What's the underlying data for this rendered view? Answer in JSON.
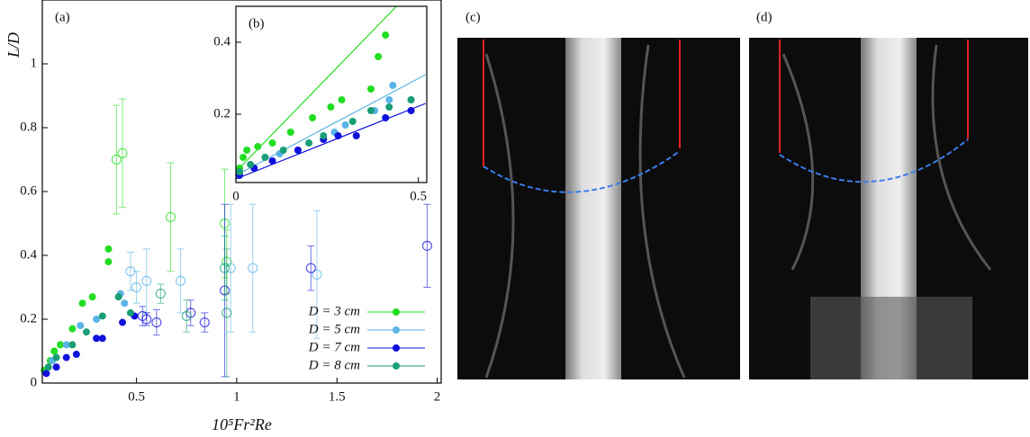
{
  "chart_data": [
    {
      "type": "scatter",
      "panel_label": "(a)",
      "y_label": "L/D",
      "x_label": "10⁵Fr²Re",
      "xlim": [
        0.03,
        2.02
      ],
      "ylim": [
        0,
        1.2
      ],
      "xticks": [
        0.5,
        1,
        1.5,
        2
      ],
      "yticks": [
        0,
        0.2,
        0.4,
        0.6,
        0.8,
        1
      ],
      "legend": "lower right",
      "series": [
        {
          "name": "D = 3 cm",
          "color": "#22dd22",
          "x": [
            0.04,
            0.07,
            0.09,
            0.12,
            0.18,
            0.23,
            0.28,
            0.36,
            0.36,
            0.4,
            0.43,
            0.67,
            0.94,
            0.95
          ],
          "values": [
            0.04,
            0.07,
            0.1,
            0.12,
            0.17,
            0.25,
            0.27,
            0.38,
            0.42,
            0.7,
            0.72,
            0.52,
            0.5,
            0.38
          ],
          "errors": [
            null,
            null,
            null,
            null,
            null,
            null,
            null,
            null,
            null,
            0.17,
            0.17,
            0.17,
            0.17,
            0.1
          ]
        },
        {
          "name": "D = 5 cm",
          "color": "#5ab4e5",
          "x": [
            0.08,
            0.15,
            0.22,
            0.3,
            0.42,
            0.44,
            0.47,
            0.5,
            0.55,
            0.72,
            0.97,
            1.08,
            1.4
          ],
          "values": [
            0.07,
            0.12,
            0.18,
            0.2,
            0.28,
            0.25,
            0.35,
            0.3,
            0.32,
            0.32,
            0.36,
            0.36,
            0.34
          ],
          "errors": [
            null,
            null,
            null,
            null,
            null,
            null,
            0.06,
            0.05,
            0.1,
            0.1,
            0.2,
            0.2,
            0.2
          ]
        },
        {
          "name": "D = 7 cm",
          "color": "#1010dd",
          "x": [
            0.05,
            0.1,
            0.15,
            0.2,
            0.3,
            0.33,
            0.43,
            0.49,
            0.53,
            0.55,
            0.6,
            0.77,
            0.84,
            0.94,
            1.37,
            1.95
          ],
          "values": [
            0.03,
            0.05,
            0.08,
            0.09,
            0.14,
            0.14,
            0.19,
            0.21,
            0.21,
            0.2,
            0.19,
            0.22,
            0.19,
            0.29,
            0.36,
            0.43
          ],
          "errors": [
            null,
            null,
            null,
            null,
            null,
            null,
            null,
            null,
            0.03,
            0.02,
            0.04,
            0.04,
            0.03,
            0.27,
            0.07,
            0.13
          ]
        },
        {
          "name": "D = 8 cm",
          "color": "#1a9e77",
          "x": [
            0.06,
            0.1,
            0.18,
            0.25,
            0.33,
            0.41,
            0.47,
            0.62,
            0.75,
            0.94,
            0.95
          ],
          "values": [
            0.05,
            0.08,
            0.12,
            0.16,
            0.21,
            0.27,
            0.22,
            0.28,
            0.21,
            0.36,
            0.22
          ],
          "errors": [
            null,
            null,
            null,
            null,
            null,
            null,
            null,
            0.03,
            0.05,
            0.1,
            0.2
          ]
        }
      ]
    },
    {
      "type": "scatter",
      "panel_label": "(b)",
      "xlim": [
        0,
        0.523
      ],
      "ylim": [
        0.01,
        0.5
      ],
      "xticks": [
        0,
        0.5
      ],
      "yticks": [
        0.2,
        0.4
      ],
      "series": [
        {
          "color": "#22dd22",
          "x": [
            0.01,
            0.02,
            0.03,
            0.06,
            0.1,
            0.15,
            0.21,
            0.26,
            0.29,
            0.37,
            0.39,
            0.41
          ],
          "values": [
            0.05,
            0.08,
            0.1,
            0.11,
            0.12,
            0.15,
            0.19,
            0.22,
            0.24,
            0.27,
            0.36,
            0.42
          ],
          "fit": {
            "x": [
              0,
              0.44
            ],
            "values": [
              0.04,
              0.5
            ]
          }
        },
        {
          "color": "#5ab4e5",
          "x": [
            0.01,
            0.05,
            0.12,
            0.17,
            0.27,
            0.3,
            0.38,
            0.42,
            0.43,
            0.48
          ],
          "values": [
            0.04,
            0.05,
            0.09,
            0.1,
            0.15,
            0.17,
            0.21,
            0.24,
            0.28,
            0.24
          ],
          "fit": {
            "x": [
              0,
              0.52
            ],
            "values": [
              0.03,
              0.31
            ]
          }
        },
        {
          "color": "#1010dd",
          "x": [
            0.01,
            0.05,
            0.1,
            0.17,
            0.24,
            0.28,
            0.33,
            0.41,
            0.48
          ],
          "values": [
            0.03,
            0.05,
            0.07,
            0.1,
            0.13,
            0.14,
            0.14,
            0.19,
            0.21
          ],
          "fit": {
            "x": [
              0,
              0.52
            ],
            "values": [
              0.02,
              0.23
            ]
          }
        },
        {
          "color": "#1a9e77",
          "x": [
            0.01,
            0.04,
            0.08,
            0.13,
            0.2,
            0.24,
            0.32,
            0.37,
            0.42,
            0.48
          ],
          "values": [
            0.04,
            0.06,
            0.08,
            0.1,
            0.12,
            0.14,
            0.18,
            0.21,
            0.22,
            0.24
          ]
        }
      ]
    }
  ],
  "photos": [
    {
      "label": "(c)"
    },
    {
      "label": "(d)"
    }
  ]
}
